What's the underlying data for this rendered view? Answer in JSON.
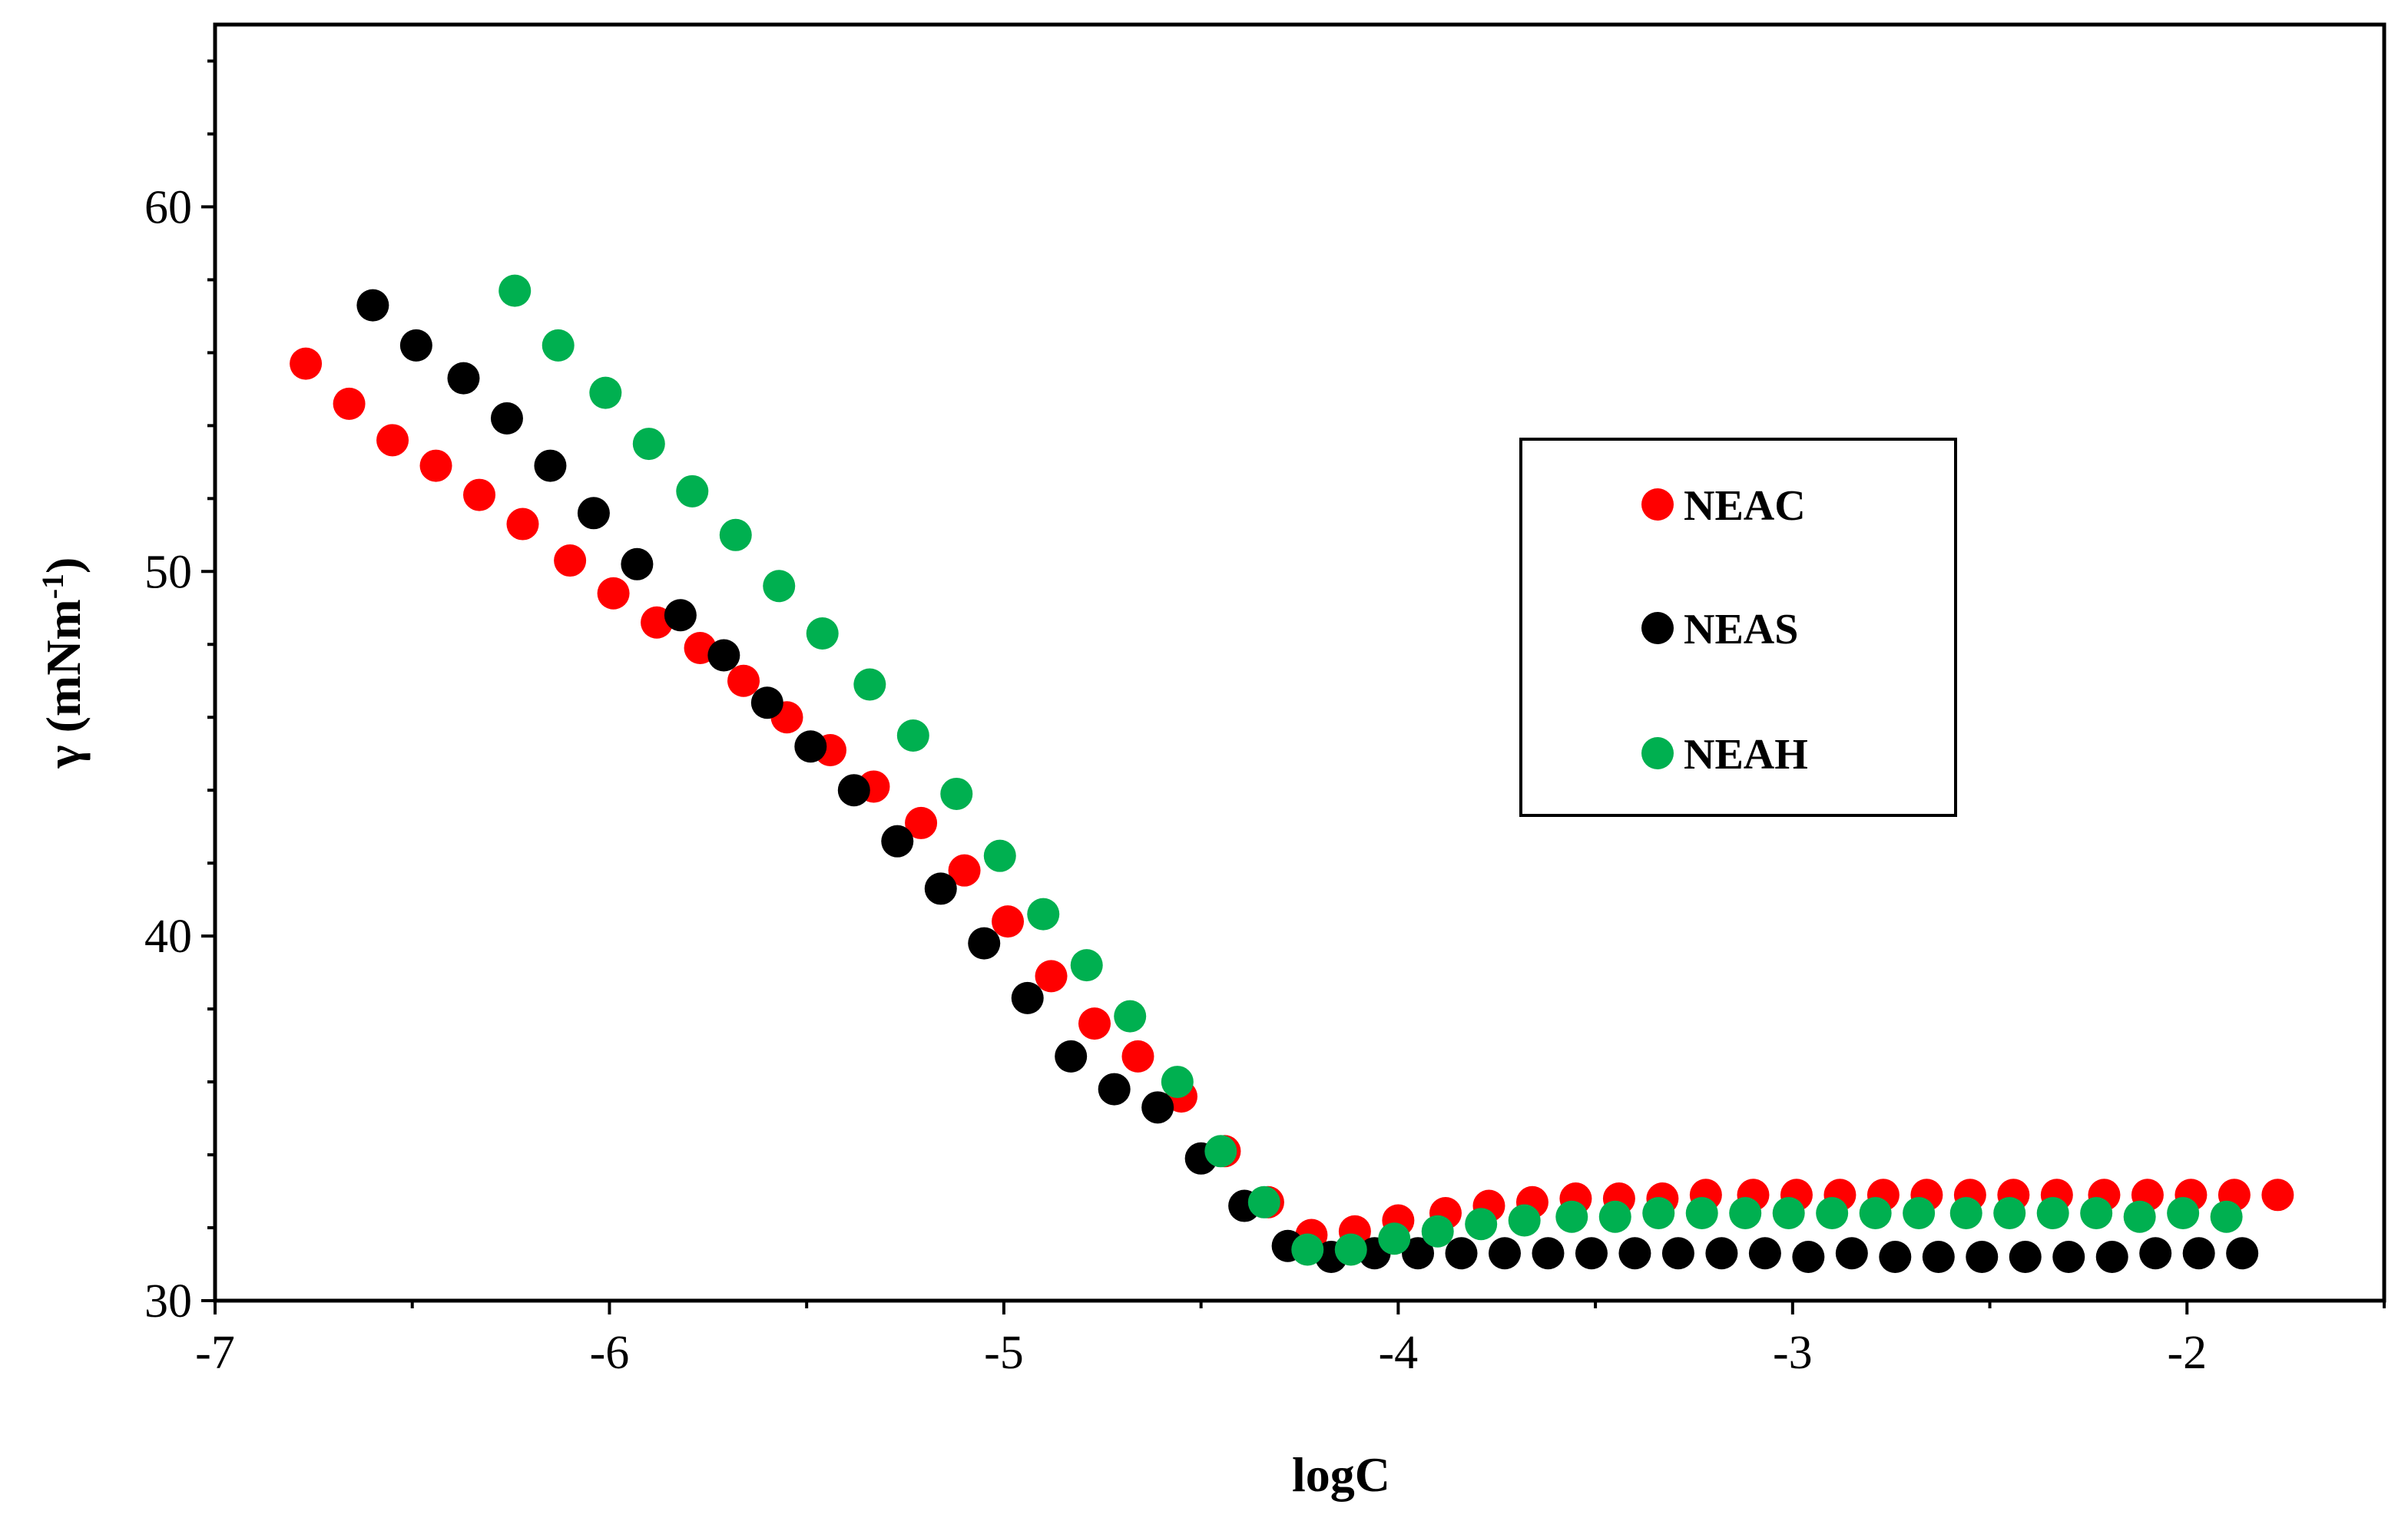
{
  "chart_data": {
    "type": "scatter",
    "title": "",
    "xlabel": "logC",
    "ylabel": "γ (mNm-1)",
    "ylabel_parts": {
      "pre": "γ (mNm",
      "sup": "-1",
      "post": ")"
    },
    "xlim": [
      -7,
      -1.5
    ],
    "ylim": [
      30,
      65
    ],
    "x_ticks": [
      -7,
      -6,
      -5,
      -4,
      -3,
      -2
    ],
    "y_ticks": [
      30,
      40,
      50,
      60
    ],
    "legend_position": "right",
    "series": [
      {
        "name": "NEAC",
        "color": "#ff0000",
        "x": [
          -6.77,
          -6.66,
          -6.55,
          -6.44,
          -6.33,
          -6.22,
          -6.1,
          -5.99,
          -5.88,
          -5.77,
          -5.66,
          -5.55,
          -5.44,
          -5.33,
          -5.21,
          -5.1,
          -4.99,
          -4.88,
          -4.77,
          -4.66,
          -4.55,
          -4.44,
          -4.33,
          -4.22,
          -4.11,
          -4.0,
          -3.88,
          -3.77,
          -3.66,
          -3.55,
          -3.44,
          -3.33,
          -3.22,
          -3.1,
          -2.99,
          -2.88,
          -2.77,
          -2.66,
          -2.55,
          -2.44,
          -2.33,
          -2.21,
          -2.1,
          -1.99,
          -1.88,
          -1.77
        ],
        "y": [
          55.7,
          54.6,
          53.6,
          52.9,
          52.1,
          51.3,
          50.3,
          49.4,
          48.6,
          47.9,
          47.0,
          46.0,
          45.1,
          44.1,
          43.1,
          41.8,
          40.4,
          38.9,
          37.6,
          36.7,
          35.6,
          34.1,
          32.7,
          31.8,
          31.9,
          32.2,
          32.4,
          32.6,
          32.7,
          32.8,
          32.8,
          32.8,
          32.9,
          32.9,
          32.9,
          32.9,
          32.9,
          32.9,
          32.9,
          32.9,
          32.9,
          32.9,
          32.9,
          32.9,
          32.9,
          32.9
        ]
      },
      {
        "name": "NEAS",
        "color": "#000000",
        "x": [
          -6.6,
          -6.49,
          -6.37,
          -6.26,
          -6.15,
          -6.04,
          -5.93,
          -5.82,
          -5.71,
          -5.6,
          -5.49,
          -5.38,
          -5.27,
          -5.16,
          -5.05,
          -4.94,
          -4.83,
          -4.72,
          -4.61,
          -4.5,
          -4.39,
          -4.28,
          -4.17,
          -4.06,
          -3.95,
          -3.84,
          -3.73,
          -3.62,
          -3.51,
          -3.4,
          -3.29,
          -3.18,
          -3.07,
          -2.96,
          -2.85,
          -2.74,
          -2.63,
          -2.52,
          -2.41,
          -2.3,
          -2.19,
          -2.08,
          -1.97,
          -1.86
        ],
        "y": [
          57.3,
          56.2,
          55.3,
          54.2,
          52.9,
          51.6,
          50.2,
          48.8,
          47.7,
          46.4,
          45.2,
          44.0,
          42.6,
          41.3,
          39.8,
          38.3,
          36.7,
          35.8,
          35.3,
          33.9,
          32.6,
          31.5,
          31.2,
          31.3,
          31.3,
          31.3,
          31.3,
          31.3,
          31.3,
          31.3,
          31.3,
          31.3,
          31.3,
          31.2,
          31.3,
          31.2,
          31.2,
          31.2,
          31.2,
          31.2,
          31.2,
          31.3,
          31.3,
          31.3
        ]
      },
      {
        "name": "NEAH",
        "color": "#00b050",
        "x": [
          -6.24,
          -6.13,
          -6.01,
          -5.9,
          -5.79,
          -5.68,
          -5.57,
          -5.46,
          -5.34,
          -5.23,
          -5.12,
          -5.01,
          -4.9,
          -4.79,
          -4.68,
          -4.56,
          -4.45,
          -4.34,
          -4.23,
          -4.12,
          -4.01,
          -3.9,
          -3.79,
          -3.68,
          -3.56,
          -3.45,
          -3.34,
          -3.23,
          -3.12,
          -3.01,
          -2.9,
          -2.79,
          -2.68,
          -2.56,
          -2.45,
          -2.34,
          -2.23,
          -2.12,
          -2.01,
          -1.9
        ],
        "y": [
          57.7,
          56.2,
          54.9,
          53.5,
          52.2,
          51.0,
          49.6,
          48.3,
          46.9,
          45.5,
          43.9,
          42.2,
          40.6,
          39.2,
          37.8,
          36.0,
          34.1,
          32.7,
          31.4,
          31.4,
          31.7,
          31.9,
          32.1,
          32.2,
          32.3,
          32.3,
          32.4,
          32.4,
          32.4,
          32.4,
          32.4,
          32.4,
          32.4,
          32.4,
          32.4,
          32.4,
          32.4,
          32.3,
          32.4,
          32.3
        ]
      }
    ]
  }
}
